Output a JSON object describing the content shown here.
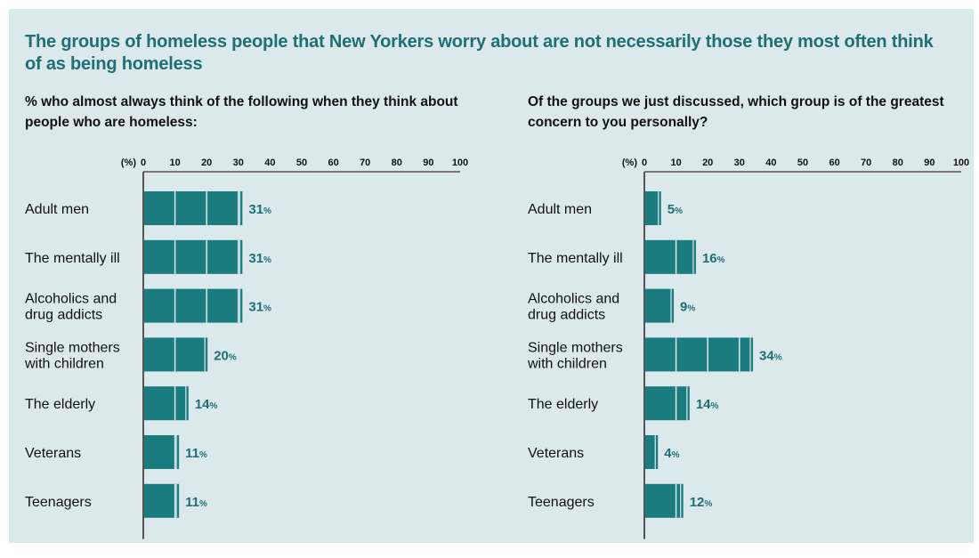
{
  "title": "The groups of homeless people that New Yorkers worry about are not necessarily those they most often think of as being homeless",
  "colors": {
    "bar": "#1a7c7f",
    "value_text": "#1f6f73",
    "background": "#dbe9ec"
  },
  "chart_data": [
    {
      "type": "bar",
      "orientation": "horizontal",
      "subtitle": "% who almost always think of the following when they think about people who are homeless:",
      "unit_label": "(%)",
      "value_suffix": "%",
      "xlim": [
        0,
        100
      ],
      "ticks": [
        0,
        10,
        20,
        30,
        40,
        50,
        60,
        70,
        80,
        90,
        100
      ],
      "categories": [
        [
          "Adult men"
        ],
        [
          "The mentally ill"
        ],
        [
          "Alcoholics and",
          "drug addicts"
        ],
        [
          "Single mothers",
          "with children"
        ],
        [
          "The elderly"
        ],
        [
          "Veterans"
        ],
        [
          "Teenagers"
        ]
      ],
      "values": [
        31,
        31,
        31,
        20,
        14,
        11,
        11
      ]
    },
    {
      "type": "bar",
      "orientation": "horizontal",
      "subtitle": "Of the groups we just discussed, which group is of the greatest concern to you personally?",
      "unit_label": "(%)",
      "value_suffix": "%",
      "xlim": [
        0,
        100
      ],
      "ticks": [
        0,
        10,
        20,
        30,
        40,
        50,
        60,
        70,
        80,
        90,
        100
      ],
      "categories": [
        [
          "Adult men"
        ],
        [
          "The mentally ill"
        ],
        [
          "Alcoholics and",
          "drug addicts"
        ],
        [
          "Single mothers",
          "with children"
        ],
        [
          "The elderly"
        ],
        [
          "Veterans"
        ],
        [
          "Teenagers"
        ]
      ],
      "values": [
        5,
        16,
        9,
        34,
        14,
        4,
        12
      ]
    }
  ]
}
